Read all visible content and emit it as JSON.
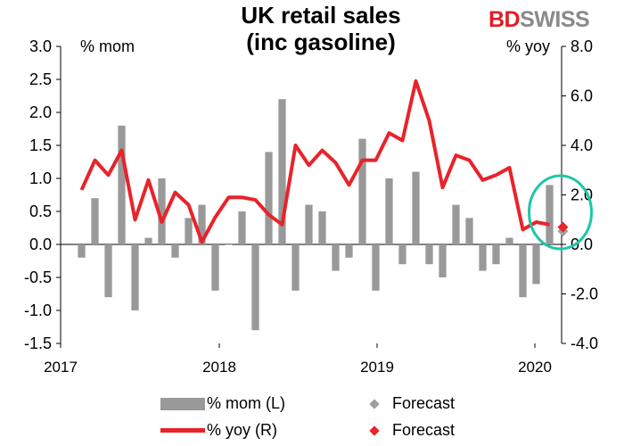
{
  "header": {
    "title_line1": "UK retail sales",
    "title_line2": "(inc gasoline)",
    "left_unit": "% mom",
    "right_unit": "% yoy",
    "brand_part1": "BD",
    "brand_part2": "SWISS"
  },
  "legend": {
    "mom_label": "% mom (L)",
    "mom_forecast_label": "Forecast",
    "yoy_label": "% yoy (R)",
    "yoy_forecast_label": "Forecast"
  },
  "colors": {
    "bar": "#999999",
    "line": "#e8232a",
    "bar_forecast": "#9e9e9e",
    "line_forecast": "#e8232a",
    "highlight_ellipse": "#1dc6a6",
    "brand_red": "#e31b23",
    "brand_gray": "#8a8a8a"
  },
  "chart_data": {
    "type": "bar",
    "title": "UK retail sales (inc gasoline)",
    "x_tick_labels": [
      "2017",
      "2018",
      "2019",
      "2020"
    ],
    "left_axis": {
      "label": "% mom",
      "ticks": [
        "3.0",
        "2.5",
        "2.0",
        "1.5",
        "1.0",
        "0.5",
        "0.0",
        "-0.5",
        "-1.0",
        "-1.5"
      ],
      "ylim": [
        -1.5,
        3.0
      ]
    },
    "right_axis": {
      "label": "% yoy",
      "ticks": [
        "8.0",
        "6.0",
        "4.0",
        "2.0",
        "0.0",
        "-2.0",
        "-4.0"
      ],
      "ylim": [
        -4.0,
        8.0
      ]
    },
    "series": [
      {
        "name": "% mom (L)",
        "type": "bar",
        "axis": "left",
        "values": [
          -0.2,
          0.7,
          -0.8,
          1.8,
          -1.0,
          0.1,
          1.0,
          -0.2,
          0.4,
          0.6,
          -0.7,
          0.0,
          0.5,
          -1.3,
          1.4,
          2.2,
          -0.7,
          0.6,
          0.5,
          -0.4,
          -0.2,
          1.6,
          -0.7,
          1.0,
          -0.3,
          1.1,
          -0.3,
          -0.5,
          0.6,
          0.4,
          -0.4,
          -0.3,
          0.1,
          -0.8,
          -0.6,
          0.9
        ],
        "forecast": 0.2
      },
      {
        "name": "% yoy (R)",
        "type": "line",
        "axis": "right",
        "values": [
          2.2,
          3.4,
          2.8,
          3.8,
          1.0,
          2.6,
          0.9,
          2.1,
          1.6,
          0.1,
          1.1,
          1.9,
          1.9,
          1.8,
          1.2,
          0.8,
          4.0,
          3.2,
          3.8,
          3.3,
          2.4,
          3.4,
          3.4,
          4.5,
          4.2,
          6.6,
          5.0,
          2.3,
          3.6,
          3.4,
          2.6,
          2.8,
          3.1,
          0.6,
          0.9,
          0.8
        ],
        "forecast": 0.7
      }
    ],
    "legend_entries": [
      "% mom (L)",
      "Forecast",
      "% yoy (R)",
      "Forecast"
    ],
    "grid": false,
    "legend_placement": "bottom"
  }
}
